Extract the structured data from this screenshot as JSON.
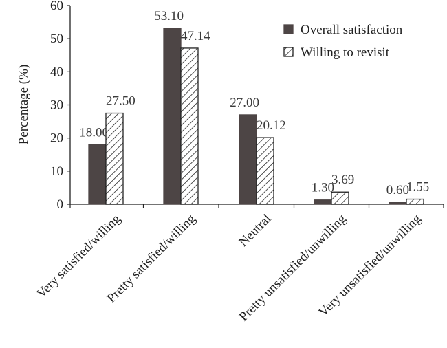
{
  "chart_data": {
    "type": "bar",
    "title": "",
    "xlabel": "",
    "ylabel": "Percentage (%)",
    "ylim": [
      0,
      60
    ],
    "yticks": [
      0,
      10,
      20,
      30,
      40,
      50,
      60
    ],
    "categories": [
      "Very satisfied/willing",
      "Pretty satisfied/willing",
      "Neutral",
      "Pretty unsatisfied/unwilling",
      "Very unsatisfied/unwilling"
    ],
    "series": [
      {
        "name": "Overall satisfaction",
        "values": [
          18.0,
          53.1,
          27.0,
          1.3,
          0.6
        ],
        "labels": [
          "18.00",
          "53.10",
          "27.00",
          "1.30",
          "0.60"
        ],
        "fill": "solid",
        "color": "#4d4545"
      },
      {
        "name": "Willing to revisit",
        "values": [
          27.5,
          47.14,
          20.12,
          3.69,
          1.55
        ],
        "labels": [
          "27.50",
          "47.14",
          "20.12",
          "3.69",
          "1.55"
        ],
        "fill": "hatched",
        "color": "#ffffff"
      }
    ],
    "legend_position": "top-right",
    "grid": false
  }
}
